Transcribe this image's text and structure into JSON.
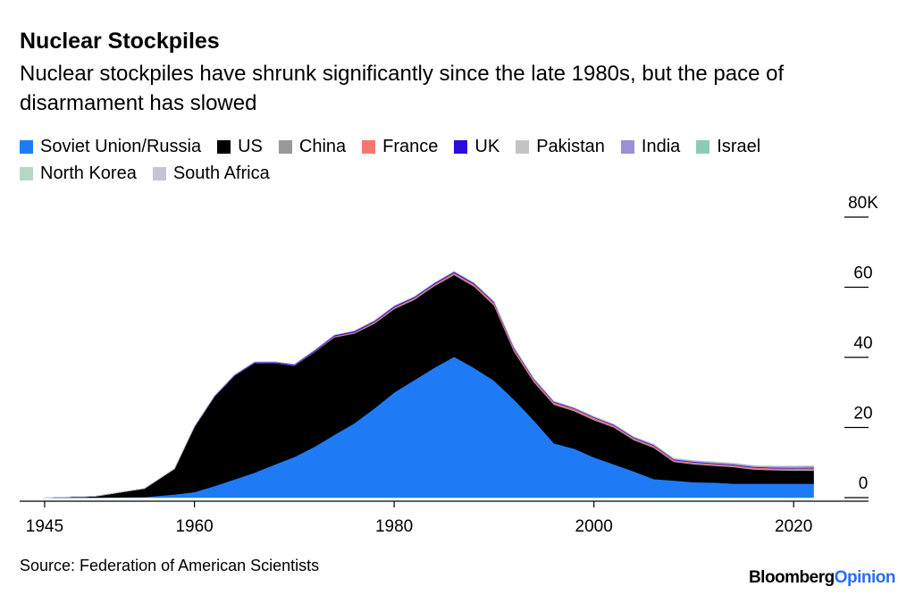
{
  "chart_data": {
    "type": "stacked_area",
    "title": "Nuclear Stockpiles",
    "subtitle": "Nuclear stockpiles have shrunk significantly since the late 1980s, but the pace of disarmament has slowed",
    "source": "Source: Federation of American Scientists",
    "brand": [
      "Bloomberg",
      "Opinion"
    ],
    "x": [
      1945,
      1950,
      1955,
      1958,
      1960,
      1962,
      1964,
      1966,
      1968,
      1970,
      1972,
      1974,
      1976,
      1978,
      1980,
      1982,
      1984,
      1986,
      1988,
      1990,
      1992,
      1994,
      1996,
      1998,
      2000,
      2002,
      2004,
      2006,
      2008,
      2010,
      2012,
      2014,
      2016,
      2018,
      2020,
      2022
    ],
    "xlim": [
      1942.5,
      2027.5
    ],
    "xticks": [
      1945,
      1960,
      1980,
      2000,
      2020
    ],
    "ylim": [
      0,
      80
    ],
    "yticks": [
      0,
      20,
      40,
      60,
      {
        "value": 80,
        "label": "80K"
      }
    ],
    "series": [
      {
        "name": "Soviet Union/Russia",
        "color": "#1f7bf5",
        "values": [
          0,
          0.005,
          0.2,
          0.9,
          1.6,
          3.3,
          5.2,
          7.1,
          9.4,
          11.6,
          14.5,
          17.9,
          21.2,
          25.4,
          30,
          33.5,
          37,
          40.2,
          37,
          33.4,
          28,
          22,
          15.5,
          14,
          11.5,
          9.5,
          7.5,
          5.3,
          4.9,
          4.4,
          4.3,
          4,
          4,
          4,
          4,
          4
        ]
      },
      {
        "name": "US",
        "color": "#000000",
        "values": [
          0.002,
          0.37,
          2.4,
          7.3,
          18.6,
          25.5,
          29.5,
          31.2,
          29,
          26,
          27,
          27.8,
          25.6,
          24.2,
          23.8,
          22.9,
          23.3,
          23.3,
          23.2,
          21.4,
          13.7,
          10.9,
          11,
          10.7,
          10.6,
          10.5,
          8.9,
          8.9,
          5.3,
          5.1,
          4.8,
          4.7,
          4,
          3.8,
          3.7,
          3.7
        ]
      },
      {
        "name": "China",
        "color": "#999999",
        "values": [
          0,
          0,
          0,
          0,
          0,
          0,
          0.001,
          0.02,
          0.04,
          0.08,
          0.13,
          0.17,
          0.19,
          0.22,
          0.25,
          0.26,
          0.25,
          0.24,
          0.23,
          0.23,
          0.23,
          0.23,
          0.23,
          0.23,
          0.23,
          0.23,
          0.23,
          0.23,
          0.23,
          0.24,
          0.24,
          0.26,
          0.27,
          0.29,
          0.35,
          0.41
        ]
      },
      {
        "name": "France",
        "color": "#f7756f",
        "values": [
          0,
          0,
          0,
          0,
          0,
          0,
          0.004,
          0.03,
          0.04,
          0.04,
          0.07,
          0.15,
          0.2,
          0.25,
          0.25,
          0.27,
          0.28,
          0.36,
          0.42,
          0.5,
          0.54,
          0.49,
          0.45,
          0.45,
          0.47,
          0.35,
          0.35,
          0.35,
          0.3,
          0.3,
          0.3,
          0.3,
          0.3,
          0.3,
          0.29,
          0.29
        ]
      },
      {
        "name": "UK",
        "color": "#2a0cdb",
        "values": [
          0,
          0,
          0.01,
          0.05,
          0.1,
          0.2,
          0.31,
          0.31,
          0.28,
          0.28,
          0.3,
          0.32,
          0.35,
          0.35,
          0.35,
          0.34,
          0.35,
          0.35,
          0.35,
          0.35,
          0.33,
          0.28,
          0.25,
          0.23,
          0.22,
          0.22,
          0.22,
          0.22,
          0.22,
          0.22,
          0.22,
          0.22,
          0.22,
          0.22,
          0.22,
          0.22
        ]
      },
      {
        "name": "Pakistan",
        "color": "#c4c4c4",
        "values": [
          0,
          0,
          0,
          0,
          0,
          0,
          0,
          0,
          0,
          0,
          0,
          0,
          0,
          0,
          0,
          0,
          0,
          0,
          0,
          0,
          0,
          0,
          0,
          0.005,
          0.02,
          0.03,
          0.05,
          0.07,
          0.09,
          0.11,
          0.12,
          0.13,
          0.14,
          0.15,
          0.16,
          0.165
        ]
      },
      {
        "name": "India",
        "color": "#9b8fd6",
        "values": [
          0,
          0,
          0,
          0,
          0,
          0,
          0,
          0,
          0,
          0,
          0,
          0,
          0,
          0,
          0,
          0,
          0,
          0,
          0,
          0,
          0,
          0,
          0,
          0.005,
          0.02,
          0.03,
          0.04,
          0.06,
          0.07,
          0.09,
          0.1,
          0.11,
          0.12,
          0.13,
          0.15,
          0.16
        ]
      },
      {
        "name": "Israel",
        "color": "#8ccbb5",
        "values": [
          0,
          0,
          0,
          0,
          0,
          0,
          0,
          0,
          0.002,
          0.013,
          0.02,
          0.031,
          0.04,
          0.047,
          0.053,
          0.06,
          0.066,
          0.072,
          0.078,
          0.084,
          0.08,
          0.08,
          0.08,
          0.08,
          0.08,
          0.08,
          0.08,
          0.08,
          0.08,
          0.08,
          0.08,
          0.08,
          0.08,
          0.08,
          0.09,
          0.09
        ]
      },
      {
        "name": "North Korea",
        "color": "#b7d7c6",
        "values": [
          0,
          0,
          0,
          0,
          0,
          0,
          0,
          0,
          0,
          0,
          0,
          0,
          0,
          0,
          0,
          0,
          0,
          0,
          0,
          0,
          0,
          0,
          0,
          0,
          0,
          0,
          0,
          0.002,
          0.004,
          0.006,
          0.01,
          0.012,
          0.015,
          0.02,
          0.03,
          0.03
        ]
      },
      {
        "name": "South Africa",
        "color": "#c6c2d8",
        "values": [
          0,
          0,
          0,
          0,
          0,
          0,
          0,
          0,
          0,
          0,
          0,
          0,
          0,
          0,
          0,
          0.001,
          0.003,
          0.004,
          0.005,
          0.006,
          0,
          0,
          0,
          0,
          0,
          0,
          0,
          0,
          0,
          0,
          0,
          0,
          0,
          0,
          0,
          0
        ]
      }
    ]
  }
}
